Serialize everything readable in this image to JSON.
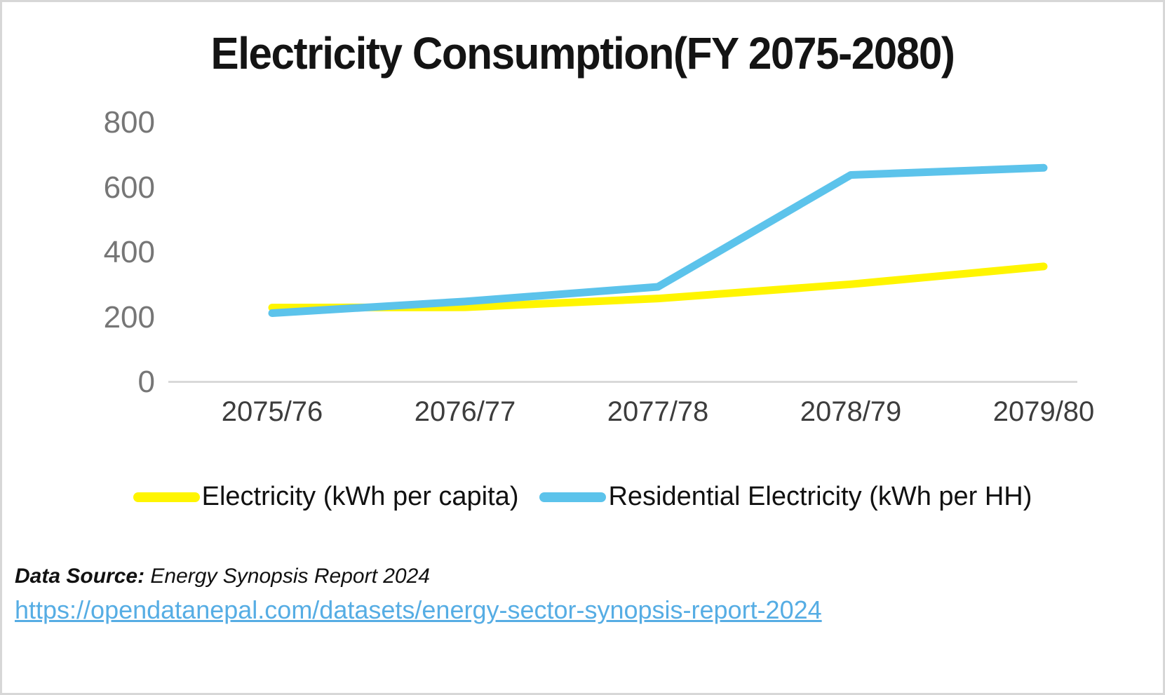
{
  "chart_data": {
    "type": "line",
    "title": "Electricity Consumption(FY 2075-2080)",
    "categories": [
      "2075/76",
      "2076/77",
      "2077/78",
      "2078/79",
      "2079/80"
    ],
    "series": [
      {
        "name": "Electricity (kWh per capita)",
        "color": "#FFF500",
        "values": [
          230,
          231,
          258,
          302,
          357
        ]
      },
      {
        "name": "Residential Electricity (kWh per HH)",
        "color": "#5CC3EB",
        "values": [
          213,
          249,
          294,
          639,
          661
        ]
      }
    ],
    "yticks": [
      0,
      200,
      400,
      600,
      800
    ],
    "ylim": [
      0,
      800
    ],
    "grid": false,
    "legend_position": "bottom",
    "axis_line_color": "#d9d9d9",
    "tick_label_color": "#767676",
    "category_label_color": "#3d3d3d",
    "title_color": "#141414",
    "frame_border_color": "#d7d7d7"
  },
  "footer": {
    "source_label": "Data Source:",
    "source_text": "Energy Synopsis Report 2024",
    "link": "https://opendatanepal.com/datasets/energy-sector-synopsis-report-2024",
    "link_color": "#56ADE4"
  }
}
